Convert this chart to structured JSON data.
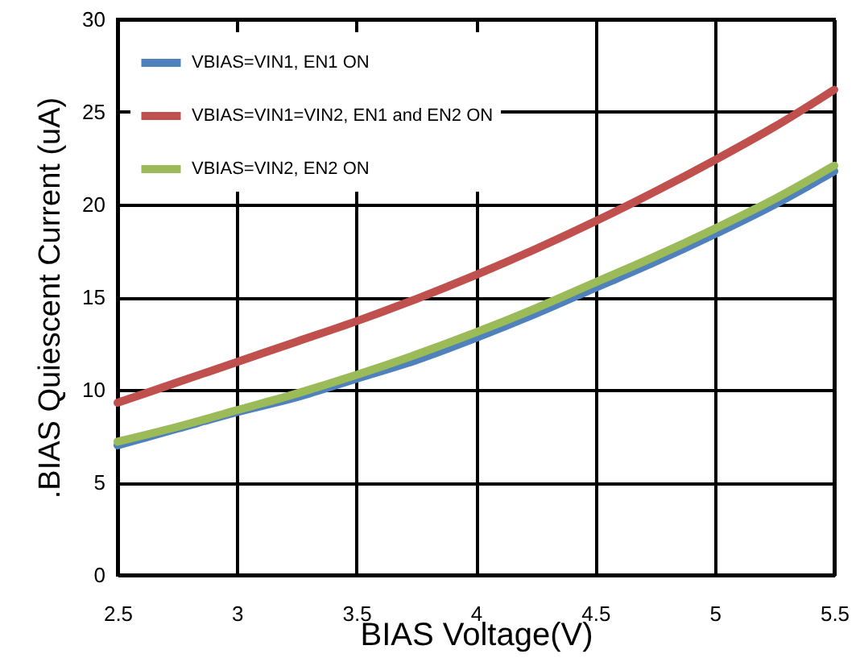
{
  "chart_data": {
    "type": "line",
    "xlabel": "BIAS Voltage(V)",
    "ylabel": ".BIAS Quiescent Current (uA)",
    "x": [
      2.5,
      2.75,
      3,
      3.25,
      3.5,
      3.75,
      4,
      4.25,
      4.5,
      4.75,
      5,
      5.25,
      5.5
    ],
    "series": [
      {
        "name": "VBIAS=VIN1, EN1 ON",
        "color": "#4f81bd",
        "values": [
          7.0,
          7.9,
          8.8,
          9.6,
          10.6,
          11.6,
          12.8,
          14.1,
          15.5,
          16.9,
          18.4,
          20.0,
          21.8
        ]
      },
      {
        "name": "VBIAS=VIN1=VIN2, EN1 and EN2 ON",
        "color": "#c0504d",
        "values": [
          9.3,
          10.4,
          11.5,
          12.6,
          13.7,
          14.9,
          16.2,
          17.6,
          19.1,
          20.7,
          22.4,
          24.2,
          26.2
        ]
      },
      {
        "name": "VBIAS=VIN2, EN2 ON",
        "color": "#9bbb59",
        "values": [
          7.2,
          8.0,
          8.9,
          9.8,
          10.8,
          11.9,
          13.1,
          14.4,
          15.8,
          17.2,
          18.7,
          20.3,
          22.1
        ]
      }
    ],
    "xlim": [
      2.5,
      5.5
    ],
    "xticks": [
      2.5,
      3,
      3.5,
      4,
      4.5,
      5,
      5.5
    ],
    "ylim": [
      0,
      30
    ],
    "yticks": [
      0,
      5,
      10,
      15,
      20,
      25,
      30
    ],
    "grid": true,
    "legend": "top left",
    "marker": "none",
    "line_style": "solid"
  }
}
